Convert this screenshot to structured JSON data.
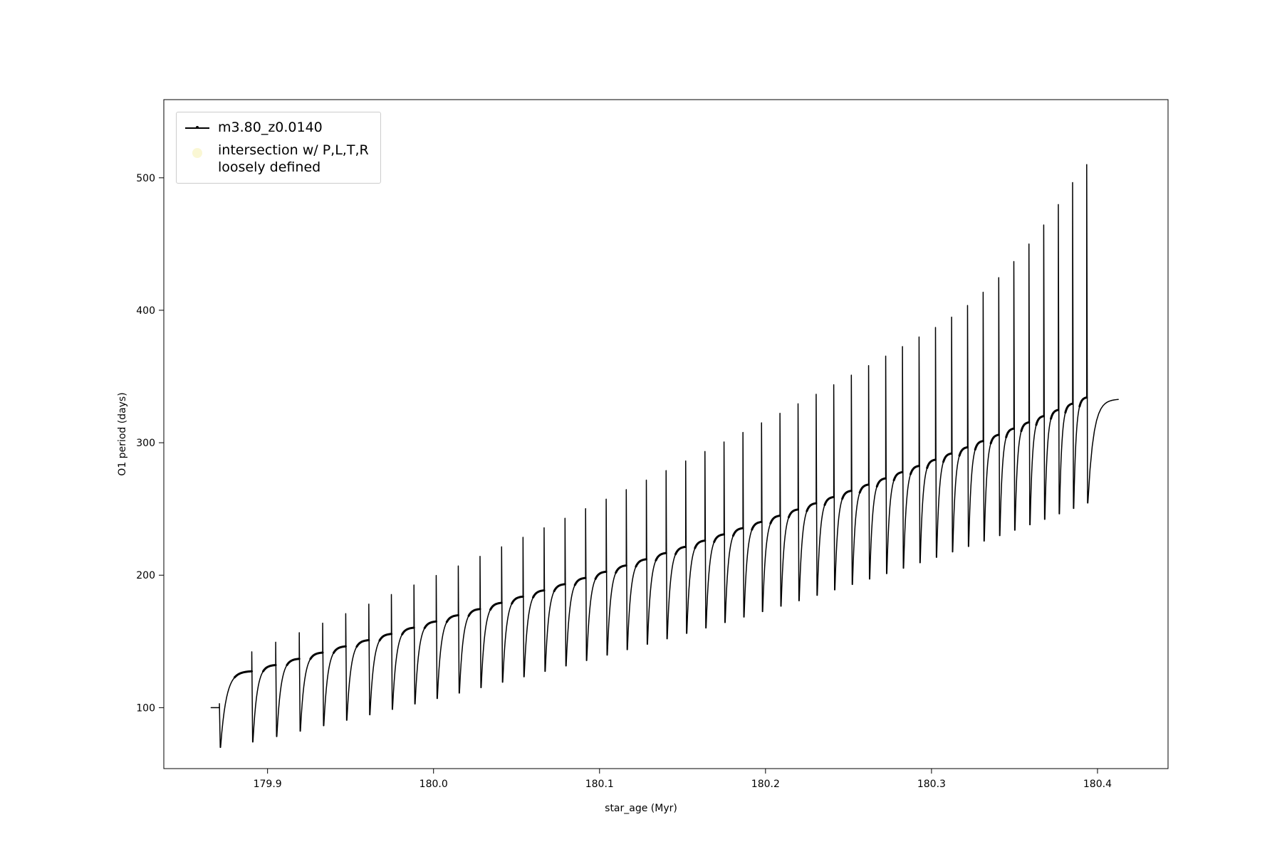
{
  "figure": {
    "background": "#ffffff"
  },
  "chart_data": {
    "type": "line",
    "title": "",
    "xlabel": "star_age (Myr)",
    "ylabel": "O1 period (days)",
    "xlim": [
      179.8375,
      180.4425
    ],
    "ylim": [
      54,
      559
    ],
    "xticks": [
      179.9,
      180.0,
      180.1,
      180.2,
      180.3,
      180.4
    ],
    "xtick_labels": [
      "179.9",
      "180.0",
      "180.1",
      "180.2",
      "180.3",
      "180.4"
    ],
    "yticks": [
      100,
      200,
      300,
      400,
      500
    ],
    "ytick_labels": [
      "100",
      "200",
      "300",
      "400",
      "500"
    ],
    "grid": false,
    "legend_position": "upper left",
    "legend": [
      {
        "label": "m3.80_z0.0140",
        "marker": "line-dot",
        "color": "#000000"
      },
      {
        "label_line1": "intersection w/ P,L,T,R",
        "label_line2": "loosely defined",
        "marker": "dot",
        "color": "#f5f0b0"
      }
    ],
    "series_name": "m3.80_z0.0140",
    "series_color": "#000000",
    "description": "Sawtooth pulsation-period evolution: smooth asymptotic recovery curves interrupted by narrow upward spikes followed by sharp dips; each cycle entry gives spike x (Myr), recovery asymptote (base), spike maximum (peak) and post-spike minimum (dip) in days.",
    "cycles": [
      {
        "x": 179.871,
        "base": 100.0,
        "peak": 103.0,
        "dip": 70.0
      },
      {
        "x": 179.8905,
        "base": 127.7,
        "peak": 142.2,
        "dip": 74.1
      },
      {
        "x": 179.9049,
        "base": 132.4,
        "peak": 149.4,
        "dip": 78.2
      },
      {
        "x": 179.9191,
        "base": 137.1,
        "peak": 156.6,
        "dip": 82.3
      },
      {
        "x": 179.9332,
        "base": 141.8,
        "peak": 163.8,
        "dip": 86.4
      },
      {
        "x": 179.9471,
        "base": 146.5,
        "peak": 171.0,
        "dip": 90.5
      },
      {
        "x": 179.961,
        "base": 151.2,
        "peak": 178.2,
        "dip": 94.6
      },
      {
        "x": 179.9746,
        "base": 155.9,
        "peak": 185.4,
        "dip": 98.7
      },
      {
        "x": 179.9882,
        "base": 160.6,
        "peak": 192.6,
        "dip": 102.8
      },
      {
        "x": 180.0016,
        "base": 165.3,
        "peak": 199.8,
        "dip": 106.9
      },
      {
        "x": 180.0149,
        "base": 170.0,
        "peak": 207.0,
        "dip": 111.0
      },
      {
        "x": 180.028,
        "base": 174.7,
        "peak": 214.2,
        "dip": 115.1
      },
      {
        "x": 180.041,
        "base": 179.4,
        "peak": 221.4,
        "dip": 119.2
      },
      {
        "x": 180.0539,
        "base": 184.1,
        "peak": 228.6,
        "dip": 123.3
      },
      {
        "x": 180.0666,
        "base": 188.8,
        "peak": 235.8,
        "dip": 127.4
      },
      {
        "x": 180.0792,
        "base": 193.5,
        "peak": 243.0,
        "dip": 131.5
      },
      {
        "x": 180.0916,
        "base": 198.2,
        "peak": 250.2,
        "dip": 135.6
      },
      {
        "x": 180.104,
        "base": 202.9,
        "peak": 257.4,
        "dip": 139.7
      },
      {
        "x": 180.1161,
        "base": 207.6,
        "peak": 264.6,
        "dip": 143.8
      },
      {
        "x": 180.1282,
        "base": 212.3,
        "peak": 271.8,
        "dip": 147.9
      },
      {
        "x": 180.1401,
        "base": 217.0,
        "peak": 279.0,
        "dip": 152.0
      },
      {
        "x": 180.1519,
        "base": 221.7,
        "peak": 286.2,
        "dip": 156.1
      },
      {
        "x": 180.1635,
        "base": 226.4,
        "peak": 293.4,
        "dip": 160.2
      },
      {
        "x": 180.175,
        "base": 231.1,
        "peak": 300.6,
        "dip": 164.3
      },
      {
        "x": 180.1864,
        "base": 235.8,
        "peak": 307.8,
        "dip": 168.4
      },
      {
        "x": 180.1976,
        "base": 240.5,
        "peak": 315.0,
        "dip": 172.5
      },
      {
        "x": 180.2087,
        "base": 245.2,
        "peak": 322.2,
        "dip": 176.6
      },
      {
        "x": 180.2196,
        "base": 249.9,
        "peak": 329.4,
        "dip": 180.7
      },
      {
        "x": 180.2305,
        "base": 254.6,
        "peak": 336.6,
        "dip": 184.8
      },
      {
        "x": 180.2411,
        "base": 259.3,
        "peak": 343.8,
        "dip": 188.9
      },
      {
        "x": 180.2517,
        "base": 264.0,
        "peak": 351.0,
        "dip": 193.0
      },
      {
        "x": 180.2621,
        "base": 268.7,
        "peak": 358.2,
        "dip": 197.1
      },
      {
        "x": 180.2724,
        "base": 273.4,
        "peak": 365.4,
        "dip": 201.2
      },
      {
        "x": 180.2825,
        "base": 278.1,
        "peak": 372.6,
        "dip": 205.3
      },
      {
        "x": 180.2925,
        "base": 282.8,
        "peak": 379.8,
        "dip": 209.4
      },
      {
        "x": 180.3024,
        "base": 287.5,
        "peak": 387.0,
        "dip": 213.5
      },
      {
        "x": 180.3121,
        "base": 292.2,
        "peak": 394.8,
        "dip": 217.6
      },
      {
        "x": 180.3217,
        "base": 296.9,
        "peak": 403.6,
        "dip": 221.7
      },
      {
        "x": 180.3311,
        "base": 301.6,
        "peak": 413.6,
        "dip": 225.8
      },
      {
        "x": 180.3405,
        "base": 306.3,
        "peak": 424.6,
        "dip": 229.9
      },
      {
        "x": 180.3496,
        "base": 311.0,
        "peak": 436.8,
        "dip": 234.0
      },
      {
        "x": 180.3587,
        "base": 315.7,
        "peak": 450.0,
        "dip": 238.1
      },
      {
        "x": 180.3676,
        "base": 320.4,
        "peak": 464.4,
        "dip": 242.2
      },
      {
        "x": 180.3764,
        "base": 325.1,
        "peak": 479.8,
        "dip": 246.3
      },
      {
        "x": 180.385,
        "base": 329.8,
        "peak": 496.4,
        "dip": 250.4
      },
      {
        "x": 180.3935,
        "base": 334.5,
        "peak": 510.0,
        "dip": 254.5
      }
    ],
    "tail": {
      "x_end": 180.4125,
      "value_end": 333.0
    }
  }
}
